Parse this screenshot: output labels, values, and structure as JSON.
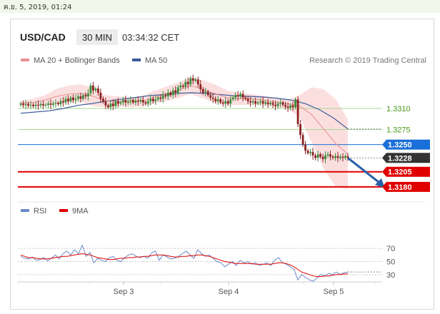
{
  "timestamp": "ค.ย. 5, 2019, 01:24",
  "header": {
    "pair": "USD/CAD",
    "timeframe": "30 MIN",
    "clock": "03:34:32 CET"
  },
  "credit": "Research © 2019 Trading Central",
  "colors": {
    "price_up": "#3a8a3a",
    "price_down": "#8b2020",
    "ma20": "#e89090",
    "bollinger": "#f9d4d4",
    "ma50": "#3a5a9a",
    "support": "#e00000",
    "resistance_line": "#a8d890",
    "resistance_text": "#4a9a1a",
    "pivot": "#1a6fd8",
    "current": "#333333",
    "forecast_arrow": "#2a5fa8",
    "rsi": "#6a8ac8",
    "rsi_ma": "#e00000"
  },
  "chart_data": [
    {
      "type": "candlestick",
      "title": "",
      "x_ticks": [
        "Sep 3",
        "Sep 4",
        "Sep 5"
      ],
      "ylim": [
        1.3155,
        1.3375
      ],
      "legend": [
        {
          "name": "MA 20 + Bollinger Bands",
          "color": "#e89090"
        },
        {
          "name": "MA 50",
          "color": "#3a5a9a"
        }
      ],
      "legend_position": "top-left",
      "levels": [
        {
          "label": "1.3310",
          "value": 1.331,
          "kind": "resistance"
        },
        {
          "label": "1.3275",
          "value": 1.3275,
          "kind": "resistance"
        },
        {
          "label": "1.3250",
          "value": 1.325,
          "kind": "pivot"
        },
        {
          "label": "1.3228",
          "value": 1.3228,
          "kind": "current"
        },
        {
          "label": "1.3205",
          "value": 1.3205,
          "kind": "support"
        },
        {
          "label": "1.3180",
          "value": 1.318,
          "kind": "support"
        }
      ],
      "close_path": [
        1.3318,
        1.3316,
        1.3317,
        1.3315,
        1.3316,
        1.3314,
        1.3316,
        1.3315,
        1.3317,
        1.3315,
        1.3316,
        1.3318,
        1.3316,
        1.3318,
        1.3319,
        1.3317,
        1.3322,
        1.332,
        1.3326,
        1.3322,
        1.3328,
        1.3324,
        1.3326,
        1.333,
        1.3326,
        1.3332,
        1.333,
        1.3335,
        1.3348,
        1.334,
        1.3343,
        1.3336,
        1.3326,
        1.3322,
        1.3315,
        1.3312,
        1.3318,
        1.3314,
        1.3322,
        1.3318,
        1.332,
        1.3324,
        1.332,
        1.3322,
        1.3324,
        1.332,
        1.3323,
        1.3322,
        1.3324,
        1.332,
        1.3318,
        1.3322,
        1.3326,
        1.3322,
        1.3325,
        1.3328,
        1.3326,
        1.3332,
        1.333,
        1.3336,
        1.3332,
        1.334,
        1.3336,
        1.3345,
        1.3348,
        1.3346,
        1.3354,
        1.335,
        1.336,
        1.3356,
        1.3358,
        1.335,
        1.3342,
        1.3336,
        1.3338,
        1.3332,
        1.3328,
        1.3326,
        1.3322,
        1.3325,
        1.332,
        1.3318,
        1.3322,
        1.3318,
        1.3325,
        1.3328,
        1.3332,
        1.333,
        1.3334,
        1.3328,
        1.3326,
        1.3322,
        1.332,
        1.3322,
        1.3318,
        1.332,
        1.3322,
        1.3318,
        1.332,
        1.3317,
        1.3319,
        1.3316,
        1.3314,
        1.3318,
        1.332,
        1.3316,
        1.3313,
        1.3311,
        1.3315,
        1.3312,
        1.3325,
        1.3284,
        1.3266,
        1.325,
        1.324,
        1.3236,
        1.3238,
        1.3232,
        1.3228,
        1.3234,
        1.323,
        1.3226,
        1.3232,
        1.3234,
        1.323,
        1.3228,
        1.3231,
        1.3228,
        1.323,
        1.3228,
        1.3231,
        1.3228
      ],
      "ma50_path": [
        1.3302,
        1.3304,
        1.3306,
        1.331,
        1.3315,
        1.3318,
        1.3322,
        1.3325,
        1.3328,
        1.3331,
        1.3333,
        1.3335,
        1.3336,
        1.3335,
        1.3333,
        1.3331,
        1.333,
        1.3329,
        1.3327,
        1.3324,
        1.3318,
        1.3308,
        1.3294,
        1.3276
      ],
      "ma20_path": [
        1.3318,
        1.332,
        1.3324,
        1.333,
        1.3334,
        1.3335,
        1.333,
        1.3322,
        1.3322,
        1.332,
        1.3322,
        1.3328,
        1.3334,
        1.334,
        1.3348,
        1.3342,
        1.3335,
        1.3328,
        1.3326,
        1.3326,
        1.3324,
        1.332,
        1.3318,
        1.3314,
        1.33,
        1.3276,
        1.3252,
        1.3234
      ],
      "bollinger_upper": [
        1.3322,
        1.3326,
        1.3332,
        1.3343,
        1.3348,
        1.335,
        1.3344,
        1.3332,
        1.333,
        1.3328,
        1.333,
        1.3339,
        1.3346,
        1.3353,
        1.3362,
        1.3357,
        1.335,
        1.334,
        1.3336,
        1.3334,
        1.3331,
        1.3328,
        1.3324,
        1.3332,
        1.3345,
        1.3342,
        1.3325,
        1.3292
      ],
      "bollinger_lower": [
        1.3313,
        1.3313,
        1.3315,
        1.3317,
        1.332,
        1.332,
        1.3314,
        1.3312,
        1.3314,
        1.3312,
        1.3313,
        1.3318,
        1.3322,
        1.3327,
        1.3334,
        1.3327,
        1.332,
        1.3315,
        1.3316,
        1.3316,
        1.3316,
        1.3312,
        1.331,
        1.3296,
        1.3255,
        1.321,
        1.318,
        1.3176
      ],
      "forecast_arrow": {
        "from": 1.3228,
        "to": 1.318
      }
    },
    {
      "type": "line",
      "title": "",
      "ylim": [
        20,
        80
      ],
      "y_ticks": [
        70,
        50,
        30
      ],
      "legend": [
        {
          "name": "RSI",
          "color": "#6a8ac8"
        },
        {
          "name": "9MA",
          "color": "#e00000"
        }
      ],
      "legend_position": "top-left",
      "series": [
        {
          "name": "RSI",
          "values": [
            58,
            55,
            54,
            57,
            52,
            53,
            56,
            51,
            55,
            60,
            54,
            62,
            66,
            60,
            68,
            62,
            75,
            58,
            64,
            48,
            55,
            52,
            50,
            56,
            58,
            52,
            50,
            56,
            60,
            62,
            58,
            56,
            58,
            55,
            63,
            66,
            52,
            60,
            57,
            54,
            55,
            58,
            62,
            66,
            60,
            55,
            68,
            62,
            58,
            60,
            55,
            50,
            48,
            42,
            46,
            50,
            44,
            52,
            48,
            50,
            46,
            48,
            44,
            46,
            48,
            44,
            52,
            56,
            48,
            46,
            42,
            38,
            22,
            30,
            26,
            22,
            20,
            25,
            30,
            28,
            32,
            30,
            34,
            30,
            33,
            34
          ]
        },
        {
          "name": "9MA",
          "values": [
            60,
            58,
            56,
            56,
            55,
            54,
            54,
            54,
            55,
            56,
            57,
            58,
            58,
            59,
            60,
            61,
            62,
            61,
            60,
            58,
            56,
            55,
            54,
            53,
            53,
            54,
            55,
            55,
            56,
            56,
            57,
            57,
            58,
            58,
            59,
            60,
            60,
            60,
            59,
            58,
            57,
            57,
            58,
            58,
            59,
            59,
            60,
            60,
            59,
            58,
            56,
            54,
            52,
            50,
            49,
            48,
            47,
            47,
            47,
            47,
            47,
            46,
            46,
            46,
            46,
            46,
            47,
            48,
            48,
            47,
            45,
            42,
            38,
            34,
            32,
            30,
            28,
            27,
            27,
            28,
            28,
            29,
            30,
            30,
            31,
            31
          ]
        }
      ]
    }
  ]
}
